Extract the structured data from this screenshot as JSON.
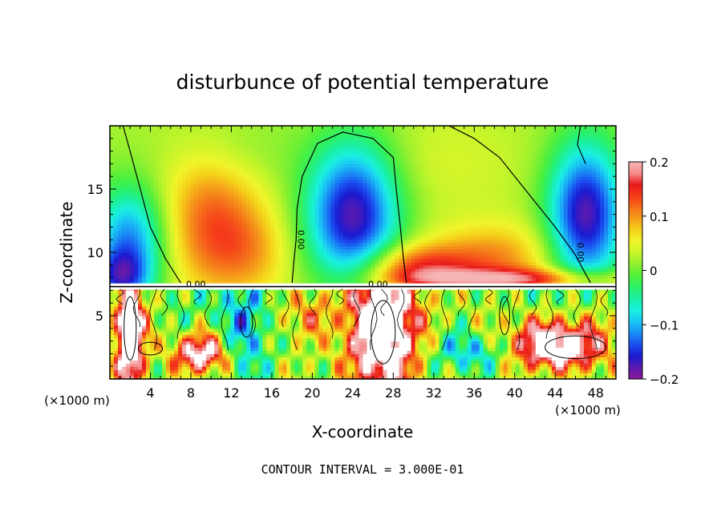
{
  "chart_data": {
    "type": "heatmap",
    "title": "disturbunce of potential temperature",
    "xlabel": "X-coordinate",
    "ylabel": "Z-coordinate",
    "x_unit_left": "(×1000 m)",
    "x_unit_right": "(×1000 m)",
    "xlim": [
      0,
      50
    ],
    "ylim": [
      0,
      20
    ],
    "x_ticks": [
      4,
      8,
      12,
      16,
      20,
      24,
      28,
      32,
      36,
      40,
      44,
      48
    ],
    "y_ticks": [
      5,
      10,
      15
    ],
    "colorbar": {
      "range": [
        -0.2,
        0.2
      ],
      "labeled_ticks": [
        {
          "value": 0.2,
          "label": "0.2"
        },
        {
          "value": 0.1,
          "label": "0.1"
        },
        {
          "value": 0,
          "label": "0"
        },
        {
          "value": -0.1,
          "label": "−0.1"
        },
        {
          "value": -0.2,
          "label": "−0.2"
        }
      ],
      "colors": [
        "#8b1a9b",
        "#5b1ab0",
        "#1a1ad0",
        "#1a4ff0",
        "#1a8ff5",
        "#1ac5f5",
        "#1af0e0",
        "#1af0a8",
        "#2bf06a",
        "#4ff03c",
        "#8cf030",
        "#c6f52a",
        "#f0f52a",
        "#f5d21a",
        "#f5a01a",
        "#f5701a",
        "#f53c1a",
        "#e81a1a",
        "#f58a8a",
        "#f5b5b5"
      ]
    },
    "contour_interval_text": "CONTOUR INTERVAL = 3.000E-01",
    "contour_labels": [
      {
        "x": 18.6,
        "z": 11.0,
        "text": "0.00"
      },
      {
        "x": 46.2,
        "z": 10.0,
        "text": "0.00"
      },
      {
        "x": 8.5,
        "z": 7.5,
        "text": "0.00"
      },
      {
        "x": 26.5,
        "z": 7.5,
        "text": "0.00"
      }
    ],
    "interface_height": 7.3
  }
}
